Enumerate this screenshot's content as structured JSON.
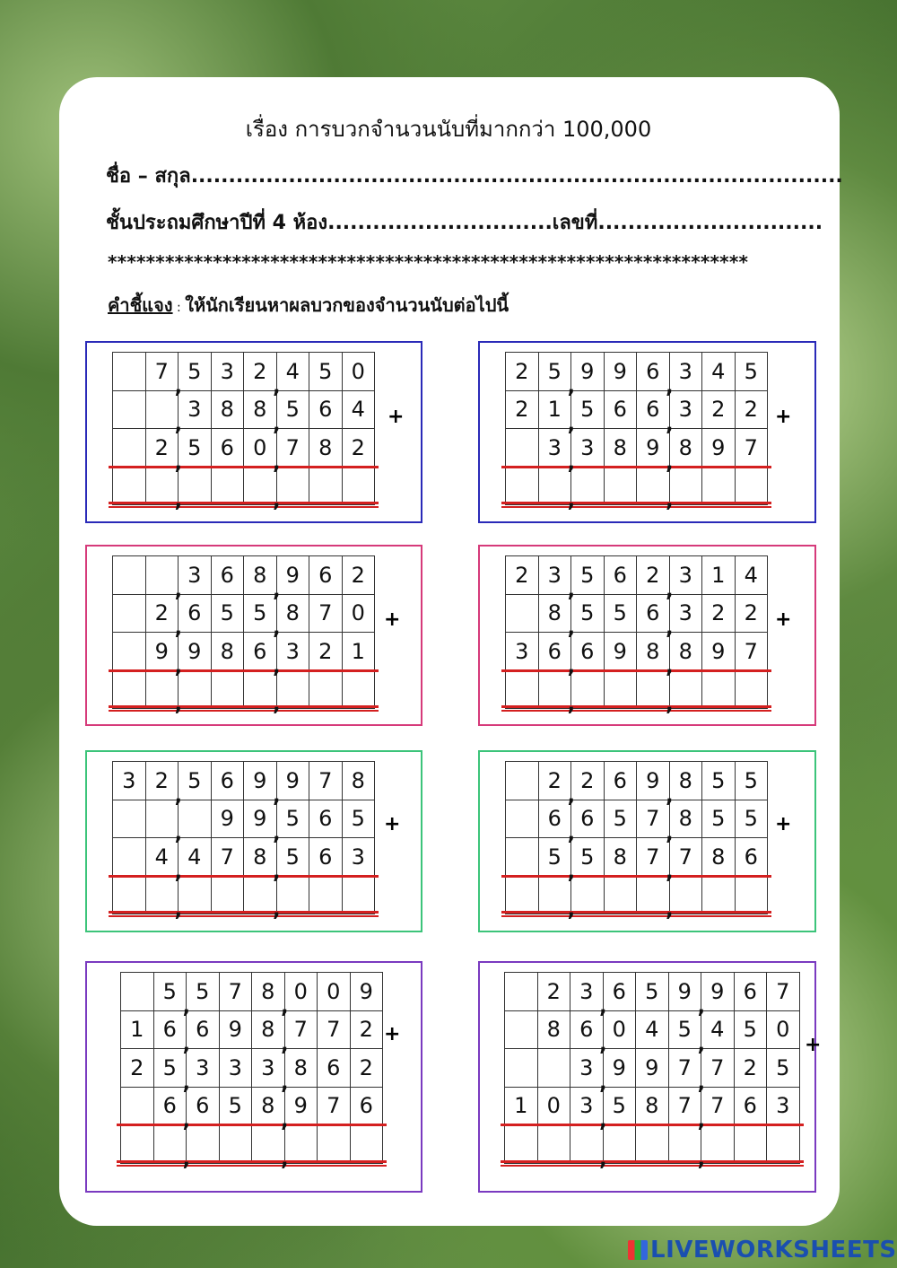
{
  "header": {
    "title": "เรื่อง การบวกจำนวนนับที่มากกว่า 100,000",
    "name_line": "ชื่อ – สกุล.......................................................................................",
    "class_line": "ชั้นประถมศึกษาปีที่ 4 ห้อง..............................เลขที่..............................",
    "stars": "*******************************************************************",
    "instruction_label": "คำชี้แจง",
    "instruction_sep": " : ",
    "instruction_text": "ให้นักเรียนหาผลบวกของจำนวนนับต่อไปนี้"
  },
  "separator": ",",
  "plus_sign": "+",
  "border_colors": {
    "blue": "#2a2ab8",
    "pink": "#d63a7a",
    "green": "#3cc47a",
    "purple": "#7a3ac0"
  },
  "problems": [
    {
      "color": "blue",
      "rows": [
        [
          "",
          "7",
          "5",
          "3",
          "2",
          "4",
          "5",
          "0"
        ],
        [
          "",
          "",
          "3",
          "8",
          "8",
          "5",
          "6",
          "4"
        ],
        [
          "",
          "2",
          "5",
          "6",
          "0",
          "7",
          "8",
          "2"
        ]
      ]
    },
    {
      "color": "blue",
      "rows": [
        [
          "2",
          "5",
          "9",
          "9",
          "6",
          "3",
          "4",
          "5"
        ],
        [
          "2",
          "1",
          "5",
          "6",
          "6",
          "3",
          "2",
          "2"
        ],
        [
          "",
          "3",
          "3",
          "8",
          "9",
          "8",
          "9",
          "7"
        ]
      ]
    },
    {
      "color": "pink",
      "rows": [
        [
          "",
          "",
          "3",
          "6",
          "8",
          "9",
          "6",
          "2"
        ],
        [
          "",
          "2",
          "6",
          "5",
          "5",
          "8",
          "7",
          "0"
        ],
        [
          "",
          "9",
          "9",
          "8",
          "6",
          "3",
          "2",
          "1"
        ]
      ]
    },
    {
      "color": "pink",
      "rows": [
        [
          "2",
          "3",
          "5",
          "6",
          "2",
          "3",
          "1",
          "4"
        ],
        [
          "",
          "8",
          "5",
          "5",
          "6",
          "3",
          "2",
          "2"
        ],
        [
          "3",
          "6",
          "6",
          "9",
          "8",
          "8",
          "9",
          "7"
        ]
      ]
    },
    {
      "color": "green",
      "rows": [
        [
          "3",
          "2",
          "5",
          "6",
          "9",
          "9",
          "7",
          "8"
        ],
        [
          "",
          "",
          "",
          "9",
          "9",
          "5",
          "6",
          "5"
        ],
        [
          "",
          "4",
          "4",
          "7",
          "8",
          "5",
          "6",
          "3"
        ]
      ]
    },
    {
      "color": "green",
      "rows": [
        [
          "",
          "2",
          "2",
          "6",
          "9",
          "8",
          "5",
          "5"
        ],
        [
          "",
          "6",
          "6",
          "5",
          "7",
          "8",
          "5",
          "5"
        ],
        [
          "",
          "5",
          "5",
          "8",
          "7",
          "7",
          "8",
          "6"
        ]
      ]
    },
    {
      "color": "purple",
      "rows": [
        [
          "",
          "5",
          "5",
          "7",
          "8",
          "0",
          "0",
          "9"
        ],
        [
          "1",
          "6",
          "6",
          "9",
          "8",
          "7",
          "7",
          "2"
        ],
        [
          "2",
          "5",
          "3",
          "3",
          "3",
          "8",
          "6",
          "2"
        ],
        [
          "",
          "6",
          "6",
          "5",
          "8",
          "9",
          "7",
          "6"
        ]
      ]
    },
    {
      "color": "purple",
      "rows": [
        [
          "",
          "2",
          "3",
          "6",
          "5",
          "9",
          "9",
          "6",
          "7"
        ],
        [
          "",
          "8",
          "6",
          "0",
          "4",
          "5",
          "4",
          "5",
          "0"
        ],
        [
          "",
          "",
          "3",
          "9",
          "9",
          "7",
          "7",
          "2",
          "5"
        ],
        [
          "1",
          "0",
          "3",
          "5",
          "8",
          "7",
          "7",
          "6",
          "3"
        ]
      ]
    }
  ],
  "logo": "LIVEWORKSHEETS"
}
